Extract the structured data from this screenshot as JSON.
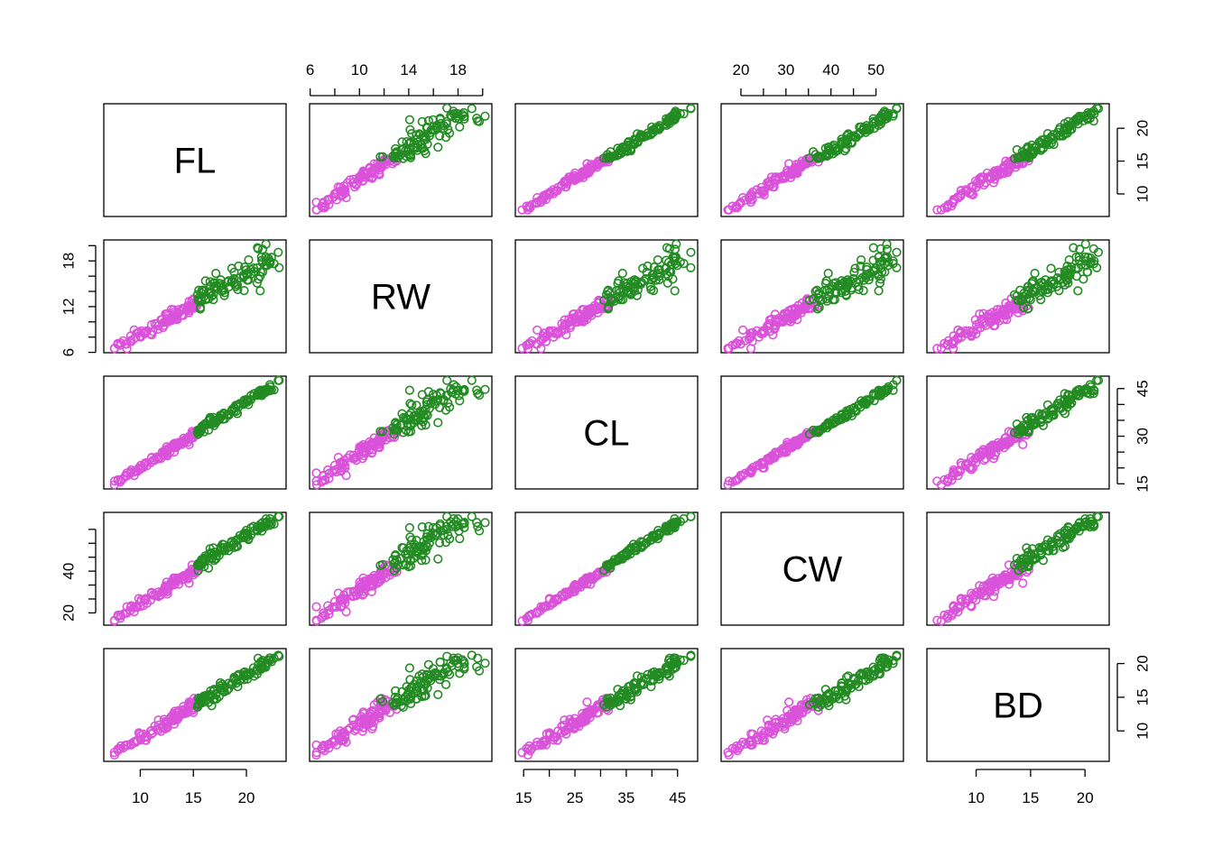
{
  "chart_data": {
    "type": "scatter-matrix",
    "variables": [
      "FL",
      "RW",
      "CL",
      "CW",
      "BD"
    ],
    "group_colors": [
      "#DA52DA",
      "#228B22"
    ],
    "ranges": [
      [
        7.2,
        23.1
      ],
      [
        6.5,
        20.2
      ],
      [
        14.7,
        47.6
      ],
      [
        17.1,
        54.6
      ],
      [
        6.1,
        21.6
      ]
    ],
    "ticks": [
      [
        10,
        15,
        20
      ],
      [
        6,
        8,
        10,
        12,
        14,
        16,
        18,
        20
      ],
      [
        15,
        20,
        25,
        30,
        35,
        40,
        45
      ],
      [
        20,
        25,
        30,
        35,
        40,
        45,
        50
      ],
      [
        10,
        15,
        20
      ]
    ],
    "tick_labels": [
      [
        "10",
        "15",
        "20"
      ],
      [
        "6",
        "",
        "10",
        "",
        "14",
        "",
        "18",
        ""
      ],
      [
        "15",
        "",
        "25",
        "",
        "35",
        "",
        "45"
      ],
      [
        "20",
        "",
        "30",
        "",
        "40",
        "",
        "50"
      ],
      [
        "10",
        "15",
        "20"
      ]
    ],
    "left_tick_labels": [
      [
        "10",
        "15",
        "20"
      ],
      [
        "6",
        "",
        "",
        "12",
        "",
        "",
        "18",
        ""
      ],
      [
        "15",
        "",
        "",
        "30",
        "",
        "",
        "45"
      ],
      [
        "20",
        "",
        "",
        "40",
        "",
        "",
        ""
      ],
      [
        "10",
        "15",
        "20"
      ]
    ],
    "right_tick_labels": [
      [
        "10",
        "15",
        "20"
      ],
      [
        "6",
        "",
        "",
        "12",
        "",
        "",
        "18",
        ""
      ],
      [
        "15",
        "",
        "",
        "30",
        "",
        "",
        "45"
      ],
      [
        "20",
        "",
        "",
        "40",
        "",
        "",
        ""
      ],
      [
        "10",
        "15",
        "20"
      ]
    ],
    "n_points_per_group": 100
  }
}
